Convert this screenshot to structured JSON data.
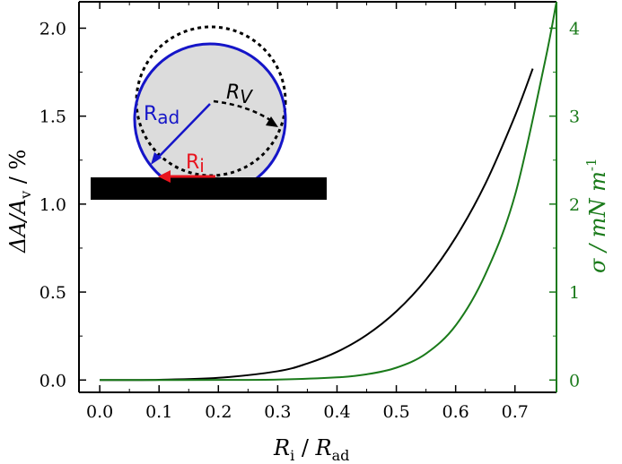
{
  "chart_data": {
    "type": "line",
    "xlabel": {
      "main": "R",
      "sub": "i",
      "sep": " / ",
      "main2": "R",
      "sub2": "ad"
    },
    "ylabel_left": {
      "text": "ΔA/A",
      "sub": "v",
      "unit": " / %"
    },
    "ylabel_right": {
      "text": "σ / mN m",
      "sup": "-1"
    },
    "xlim": [
      -0.035,
      0.77
    ],
    "ylim_left": [
      -0.07,
      2.15
    ],
    "ylim_right": [
      -0.14,
      4.3
    ],
    "x_ticks": [
      "0.0",
      "0.1",
      "0.2",
      "0.3",
      "0.4",
      "0.5",
      "0.6",
      "0.7"
    ],
    "y_left_ticks": [
      "0.0",
      "0.5",
      "1.0",
      "1.5",
      "2.0"
    ],
    "y_right_ticks": [
      "0",
      "1",
      "2",
      "3",
      "4"
    ],
    "grid": false,
    "colors": {
      "left_axis": "#000000",
      "right_axis": "#1a7a1a",
      "series_area": "#000000",
      "series_tension": "#1a7a1a"
    },
    "series": [
      {
        "axis": "left",
        "color": "#000000",
        "x": [
          0.0,
          0.1,
          0.2,
          0.3,
          0.35,
          0.4,
          0.45,
          0.5,
          0.55,
          0.6,
          0.65,
          0.7,
          0.73
        ],
        "values": [
          0.0,
          0.0016,
          0.0125,
          0.05,
          0.094,
          0.16,
          0.256,
          0.39,
          0.571,
          0.81,
          1.115,
          1.501,
          1.77
        ]
      },
      {
        "axis": "right",
        "color": "#1a7a1a",
        "x": [
          0.0,
          0.1,
          0.2,
          0.3,
          0.4,
          0.45,
          0.5,
          0.55,
          0.6,
          0.65,
          0.7,
          0.75,
          0.77
        ],
        "values": [
          0.0,
          0.0,
          0.001,
          0.005,
          0.03,
          0.065,
          0.14,
          0.3,
          0.62,
          1.2,
          2.1,
          3.6,
          4.3
        ]
      }
    ],
    "inset": {
      "labels": {
        "rad": "R",
        "rad_sub": "ad",
        "rv": "R",
        "rv_sub": "V",
        "ri": "R",
        "ri_sub": "i"
      },
      "colors": {
        "circle": "#1515c8",
        "fill": "#dcdcdc",
        "ri": "#e8141e",
        "dotted": "#000000",
        "bar": "#000000"
      }
    }
  }
}
